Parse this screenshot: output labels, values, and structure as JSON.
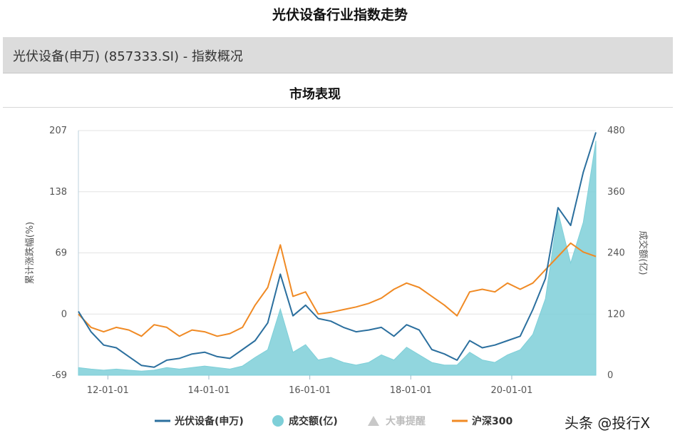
{
  "page": {
    "title": "光伏设备行业指数走势",
    "index_label": "光伏设备(申万) (857333.SI) - 指数概况",
    "section_title": "市场表现",
    "watermark": "头条 @投行X"
  },
  "chart_data": {
    "type": "line",
    "y_left": {
      "label": "累计涨跌幅(%)",
      "ticks": [
        207,
        138,
        69,
        0,
        -69
      ],
      "range": [
        -69,
        207
      ]
    },
    "y_right": {
      "label": "成交额(亿)",
      "ticks": [
        480,
        360,
        240,
        120,
        0
      ],
      "range": [
        0,
        480
      ]
    },
    "x_ticks": [
      "12-01-01",
      "14-01-01",
      "16-01-01",
      "18-01-01",
      "20-01-01"
    ],
    "x_range": [
      "2011-06",
      "2021-09"
    ],
    "legend": [
      "光伏设备(申万)",
      "成交额(亿)",
      "大事提醒",
      "沪深300"
    ],
    "colors": {
      "pv": "#2b6f9e",
      "turnover": "#7ecfd8",
      "events": "#c8c8c8",
      "hs300": "#f08a24"
    },
    "series": [
      {
        "name": "光伏设备(申万)",
        "axis": "left",
        "x": [
          "2011-06",
          "2011-09",
          "2011-12",
          "2012-03",
          "2012-06",
          "2012-09",
          "2012-12",
          "2013-03",
          "2013-06",
          "2013-09",
          "2013-12",
          "2014-03",
          "2014-06",
          "2014-09",
          "2014-12",
          "2015-03",
          "2015-06",
          "2015-09",
          "2015-12",
          "2016-03",
          "2016-06",
          "2016-09",
          "2016-12",
          "2017-03",
          "2017-06",
          "2017-09",
          "2017-12",
          "2018-03",
          "2018-06",
          "2018-09",
          "2018-12",
          "2019-03",
          "2019-06",
          "2019-09",
          "2019-12",
          "2020-03",
          "2020-06",
          "2020-09",
          "2020-12",
          "2021-03",
          "2021-06",
          "2021-09"
        ],
        "y": [
          3,
          -20,
          -35,
          -38,
          -48,
          -58,
          -60,
          -52,
          -50,
          -45,
          -43,
          -48,
          -50,
          -40,
          -30,
          -10,
          45,
          -2,
          10,
          -5,
          -8,
          -15,
          -20,
          -18,
          -15,
          -25,
          -12,
          -18,
          -40,
          -45,
          -52,
          -30,
          -38,
          -35,
          -30,
          -25,
          5,
          40,
          120,
          100,
          160,
          205
        ]
      },
      {
        "name": "沪深300",
        "axis": "left",
        "x": [
          "2011-06",
          "2011-09",
          "2011-12",
          "2012-03",
          "2012-06",
          "2012-09",
          "2012-12",
          "2013-03",
          "2013-06",
          "2013-09",
          "2013-12",
          "2014-03",
          "2014-06",
          "2014-09",
          "2014-12",
          "2015-03",
          "2015-06",
          "2015-09",
          "2015-12",
          "2016-03",
          "2016-06",
          "2016-09",
          "2016-12",
          "2017-03",
          "2017-06",
          "2017-09",
          "2017-12",
          "2018-03",
          "2018-06",
          "2018-09",
          "2018-12",
          "2019-03",
          "2019-06",
          "2019-09",
          "2019-12",
          "2020-03",
          "2020-06",
          "2020-09",
          "2020-12",
          "2021-03",
          "2021-06",
          "2021-09"
        ],
        "y": [
          0,
          -15,
          -20,
          -15,
          -18,
          -25,
          -12,
          -15,
          -25,
          -18,
          -20,
          -25,
          -22,
          -15,
          10,
          30,
          78,
          20,
          25,
          0,
          2,
          5,
          8,
          12,
          18,
          28,
          35,
          30,
          20,
          10,
          -2,
          25,
          28,
          25,
          35,
          28,
          35,
          50,
          65,
          80,
          70,
          65
        ]
      },
      {
        "name": "成交额(亿)",
        "axis": "right",
        "x": [
          "2011-06",
          "2011-09",
          "2011-12",
          "2012-03",
          "2012-06",
          "2012-09",
          "2012-12",
          "2013-03",
          "2013-06",
          "2013-09",
          "2013-12",
          "2014-03",
          "2014-06",
          "2014-09",
          "2014-12",
          "2015-03",
          "2015-06",
          "2015-09",
          "2015-12",
          "2016-03",
          "2016-06",
          "2016-09",
          "2016-12",
          "2017-03",
          "2017-06",
          "2017-09",
          "2017-12",
          "2018-03",
          "2018-06",
          "2018-09",
          "2018-12",
          "2019-03",
          "2019-06",
          "2019-09",
          "2019-12",
          "2020-03",
          "2020-06",
          "2020-09",
          "2020-12",
          "2021-03",
          "2021-06",
          "2021-09"
        ],
        "y": [
          15,
          12,
          10,
          12,
          10,
          8,
          10,
          15,
          12,
          15,
          18,
          15,
          12,
          18,
          35,
          50,
          130,
          45,
          60,
          30,
          35,
          25,
          20,
          25,
          40,
          30,
          55,
          40,
          25,
          20,
          20,
          45,
          30,
          25,
          40,
          50,
          80,
          150,
          320,
          220,
          300,
          460
        ]
      }
    ]
  }
}
